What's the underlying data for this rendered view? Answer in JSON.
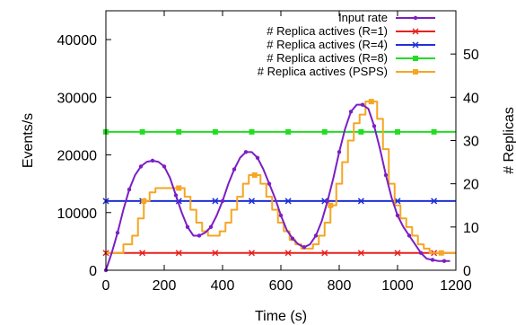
{
  "chart_data": {
    "type": "line",
    "xlabel": "Time (s)",
    "ylabel_left": "Events/s",
    "ylabel_right": "# Replicas",
    "xlim": [
      0,
      1200
    ],
    "ylim_left": [
      0,
      45000
    ],
    "ylim_right": [
      0,
      60
    ],
    "xticks": [
      "0",
      "200",
      "400",
      "600",
      "800",
      "1000",
      "1200"
    ],
    "yticks_left": [
      "0",
      "10000",
      "20000",
      "30000",
      "40000"
    ],
    "yticks_right": [
      "0",
      "10",
      "20",
      "30",
      "40",
      "50"
    ],
    "grid": false,
    "legend": {
      "placement": "top-right"
    },
    "series": [
      {
        "name": "Input rate",
        "color": "#7b1fc4",
        "axis": "left",
        "marker": "circle",
        "x": [
          0,
          20,
          40,
          60,
          80,
          100,
          120,
          140,
          160,
          180,
          200,
          220,
          240,
          260,
          280,
          300,
          320,
          340,
          360,
          380,
          400,
          420,
          440,
          460,
          480,
          500,
          520,
          540,
          560,
          580,
          600,
          620,
          640,
          660,
          680,
          700,
          720,
          740,
          760,
          780,
          800,
          820,
          840,
          860,
          880,
          900,
          920,
          940,
          960,
          980,
          1000,
          1020,
          1040,
          1060,
          1080,
          1100,
          1120,
          1140,
          1160,
          1180
        ],
        "y": [
          0,
          3000,
          6500,
          10500,
          14000,
          16500,
          18000,
          18800,
          19000,
          18800,
          18000,
          16000,
          13000,
          10000,
          7500,
          6000,
          6000,
          6500,
          7500,
          9500,
          12000,
          15000,
          17500,
          19500,
          20500,
          20500,
          19500,
          17500,
          15000,
          12500,
          9500,
          7000,
          5500,
          4500,
          4000,
          4500,
          6000,
          8500,
          12000,
          16000,
          20500,
          24500,
          27500,
          28700,
          28700,
          28000,
          25000,
          21000,
          16500,
          12500,
          9500,
          7500,
          6000,
          4500,
          3000,
          2000,
          1800,
          1600,
          1600,
          1600
        ]
      },
      {
        "name": "# Replica actives (R=1)",
        "color": "#e8201e",
        "axis": "right",
        "marker": "x",
        "x": [
          0,
          1200
        ],
        "y": [
          4,
          4
        ]
      },
      {
        "name": "# Replica actives (R=4)",
        "color": "#1f2fd6",
        "axis": "right",
        "marker": "x",
        "x": [
          0,
          1200
        ],
        "y": [
          16,
          16
        ]
      },
      {
        "name": "# Replica actives (R=8)",
        "color": "#22dd22",
        "axis": "right",
        "marker": "square",
        "x": [
          0,
          1200
        ],
        "y": [
          32,
          32
        ]
      },
      {
        "name": "# Replica actives (PSPS)",
        "color": "#f5a623",
        "axis": "right",
        "marker": "square",
        "x": [
          0,
          30,
          60,
          90,
          110,
          130,
          150,
          170,
          250,
          270,
          290,
          310,
          330,
          350,
          370,
          390,
          410,
          430,
          450,
          470,
          490,
          510,
          530,
          550,
          570,
          590,
          610,
          630,
          650,
          670,
          690,
          710,
          730,
          750,
          770,
          790,
          810,
          830,
          850,
          870,
          890,
          910,
          930,
          950,
          970,
          990,
          1010,
          1030,
          1050,
          1070,
          1090,
          1110,
          1130,
          1150,
          1170,
          1200
        ],
        "y": [
          4,
          4,
          6,
          8,
          12,
          16,
          18,
          19,
          19,
          17,
          14,
          11,
          9,
          8,
          8,
          9,
          11,
          14,
          17,
          20,
          22,
          22,
          20,
          17,
          14,
          11,
          9,
          7,
          6,
          5,
          5,
          6,
          8,
          11,
          15,
          20,
          25,
          30,
          34,
          36,
          39,
          39,
          35,
          28,
          20,
          15,
          12,
          10,
          8,
          6,
          5,
          4,
          4,
          4,
          4,
          4
        ]
      }
    ]
  }
}
